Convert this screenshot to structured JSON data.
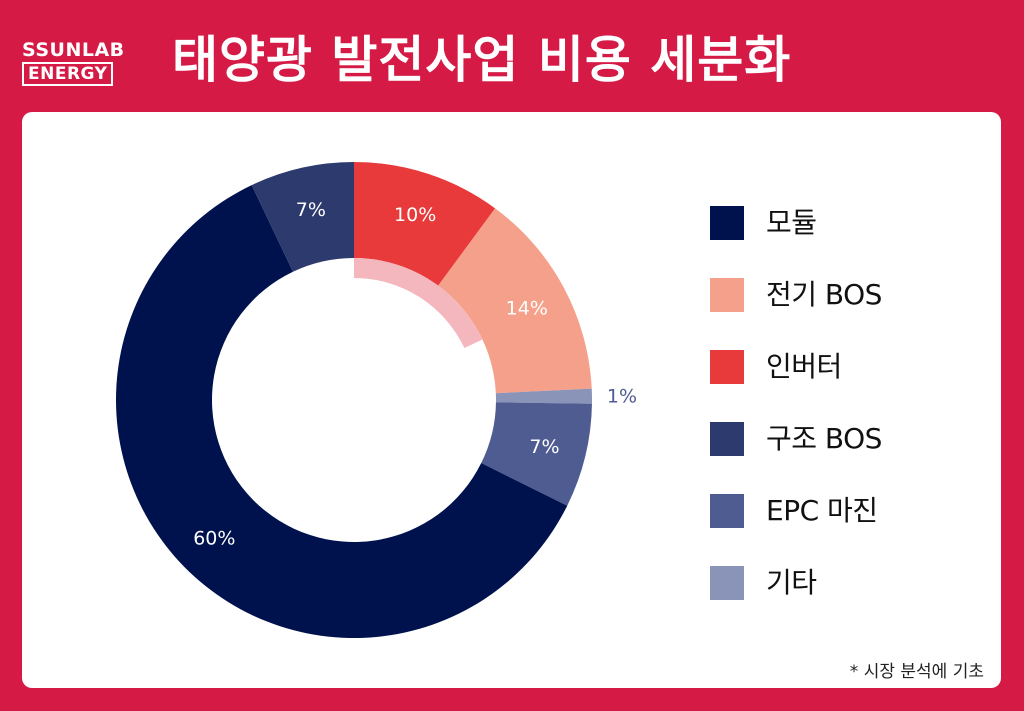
{
  "brand": {
    "line1": "SSUNLAB",
    "line2": "ENERGY"
  },
  "title": "태양광 발전사업 비용 세분화",
  "footnote": "* 시장 분석에 기초",
  "chart_data": {
    "type": "pie",
    "donut": true,
    "categories": [
      "모듈",
      "전기 BOS",
      "인버터",
      "구조 BOS",
      "EPC 마진",
      "기타"
    ],
    "values": [
      60,
      14,
      10,
      7,
      7,
      1
    ],
    "labels": [
      "60%",
      "14%",
      "10%",
      "7%",
      "7%",
      "1%"
    ],
    "colors": [
      "#00124d",
      "#f5a08a",
      "#e83a3a",
      "#2c3a6e",
      "#4f5c91",
      "#8a93b8"
    ],
    "legend_position": "right",
    "title": ""
  }
}
